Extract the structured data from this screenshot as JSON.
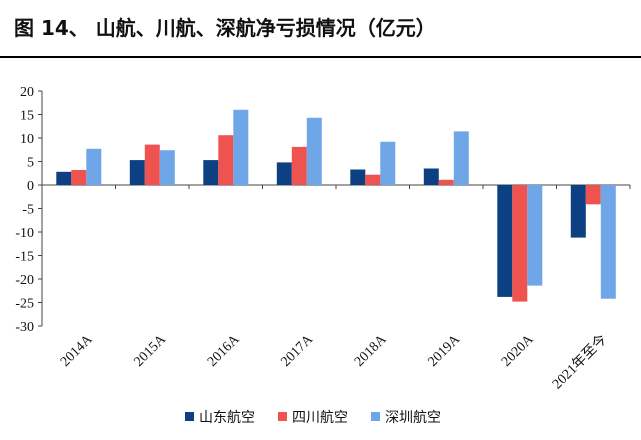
{
  "figure_title": "图 14、 山航、川航、深航净亏损情况（亿元）",
  "chart_data": {
    "type": "bar",
    "title": "",
    "xlabel": "",
    "ylabel": "",
    "categories": [
      "2014A",
      "2015A",
      "2016A",
      "2017A",
      "2018A",
      "2019A",
      "2020A",
      "2021年至今"
    ],
    "series": [
      {
        "name": "山东航空",
        "color": "#0d3f83",
        "values": [
          2.8,
          5.3,
          5.3,
          4.8,
          3.3,
          3.5,
          -23.8,
          -11.2
        ]
      },
      {
        "name": "四川航空",
        "color": "#ef5350",
        "values": [
          3.2,
          8.6,
          10.6,
          8.1,
          2.2,
          1.1,
          -24.8,
          -4.1
        ]
      },
      {
        "name": "深圳航空",
        "color": "#6fa6e8",
        "values": [
          7.7,
          7.4,
          16.0,
          14.3,
          9.2,
          11.4,
          -21.4,
          -24.2
        ]
      }
    ],
    "ylim": [
      -30,
      20
    ],
    "yticks": [
      -30,
      -25,
      -20,
      -15,
      -10,
      -5,
      0,
      5,
      10,
      15,
      20
    ],
    "legend_position": "bottom",
    "grid": false
  }
}
